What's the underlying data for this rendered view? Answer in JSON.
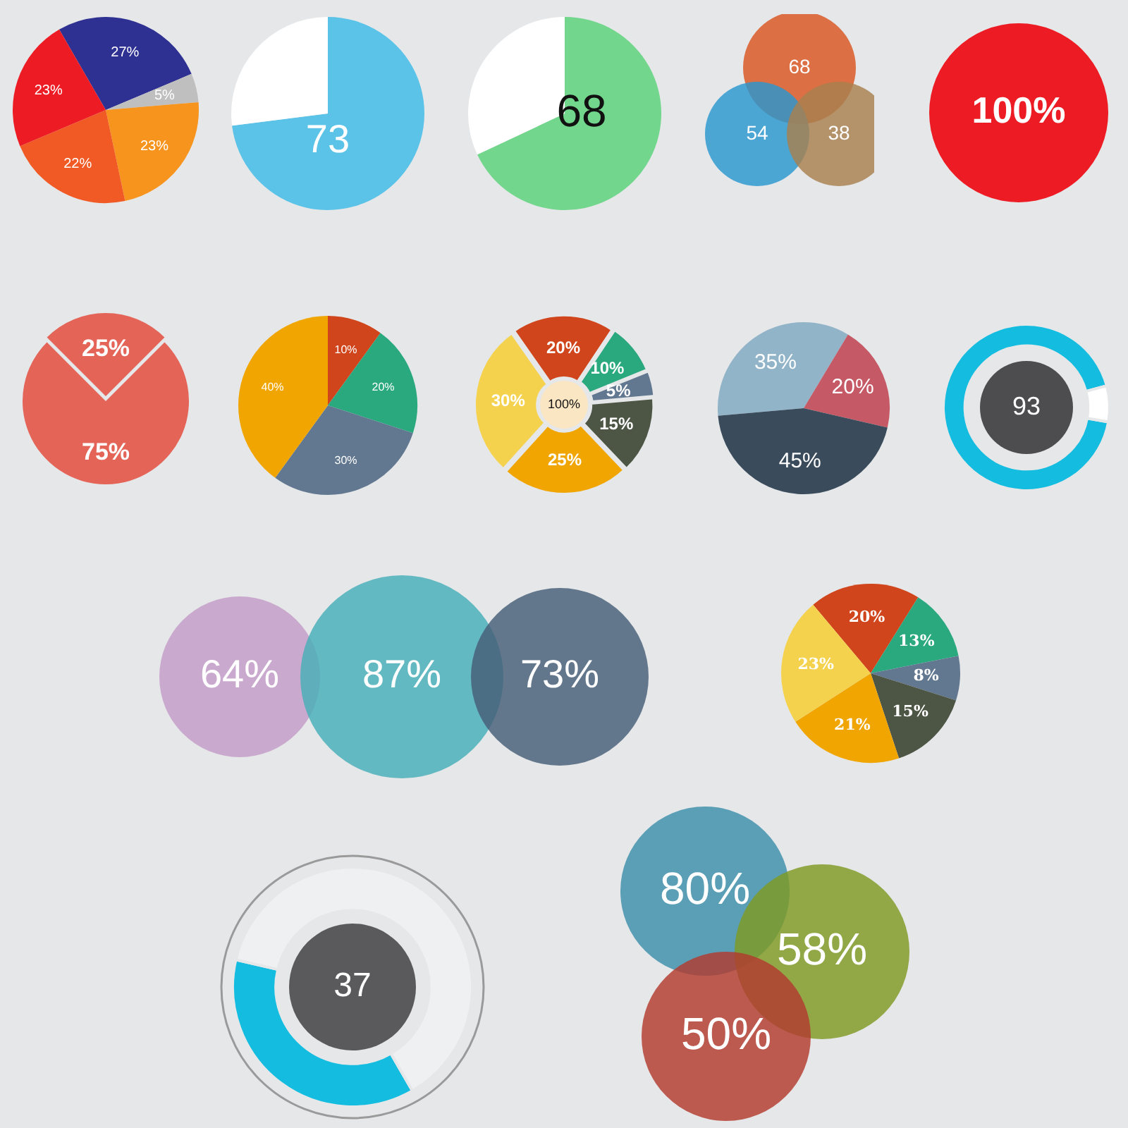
{
  "chart_data": [
    {
      "type": "pie",
      "categories": [
        null,
        null,
        null,
        null,
        null
      ],
      "values": [
        27,
        5,
        23,
        22,
        23
      ],
      "colors": [
        "#2e3192",
        "#bfbfbf",
        "#f7941d",
        "#f15a24",
        "#ed1c24"
      ],
      "value_labels": [
        "27%",
        "5%",
        "23%",
        "22%",
        "23%"
      ]
    },
    {
      "type": "pie",
      "categories": [
        null,
        null
      ],
      "values": [
        73,
        27
      ],
      "colors": [
        "#5bc3e8",
        "#ffffff"
      ],
      "annotations": [
        "73"
      ]
    },
    {
      "type": "pie",
      "categories": [
        null,
        null
      ],
      "values": [
        68,
        32
      ],
      "colors": [
        "#72d68c",
        "#ffffff"
      ],
      "annotations": [
        "68"
      ]
    },
    {
      "type": "other",
      "categories": [
        null,
        null,
        null
      ],
      "values": [
        68,
        54,
        38
      ],
      "colors": [
        "#d9541e",
        "#2a97d0",
        "#a8804f"
      ],
      "value_labels": [
        "68",
        "54",
        "38"
      ]
    },
    {
      "type": "pie",
      "categories": [
        null
      ],
      "values": [
        100
      ],
      "colors": [
        "#ed1c24"
      ],
      "annotations": [
        "100%"
      ]
    },
    {
      "type": "pie",
      "categories": [
        null,
        null
      ],
      "values": [
        25,
        75
      ],
      "colors": [
        "#e46458",
        "#e46458"
      ],
      "value_labels": [
        "25%",
        "75%"
      ]
    },
    {
      "type": "pie",
      "categories": [
        null,
        null,
        null,
        null
      ],
      "values": [
        10,
        20,
        30,
        40
      ],
      "colors": [
        "#d0451b",
        "#2aa87e",
        "#627890",
        "#f0a500"
      ],
      "value_labels": [
        "10%",
        "20%",
        "30%",
        "40%"
      ]
    },
    {
      "type": "donut",
      "categories": [
        null,
        null,
        null,
        null,
        null,
        null
      ],
      "values": [
        20,
        10,
        5,
        15,
        25,
        30
      ],
      "colors": [
        "#d0451b",
        "#2aa87e",
        "#627890",
        "#4d5645",
        "#f0a500",
        "#f5d24e"
      ],
      "value_labels": [
        "20%",
        "10%",
        "5%",
        "15%",
        "25%",
        "30%"
      ],
      "annotations": [
        "100%"
      ]
    },
    {
      "type": "pie",
      "categories": [
        null,
        null,
        null
      ],
      "values": [
        35,
        20,
        45
      ],
      "colors": [
        "#91b4c8",
        "#c55a66",
        "#3a4b5c"
      ],
      "value_labels": [
        "35%",
        "20%",
        "45%"
      ]
    },
    {
      "type": "donut",
      "categories": [
        null,
        null
      ],
      "values": [
        93,
        7
      ],
      "colors": [
        "#14bde0",
        "#ffffff"
      ],
      "annotations": [
        "93"
      ]
    },
    {
      "type": "other",
      "categories": [
        null,
        null,
        null
      ],
      "values": [
        64,
        87,
        73
      ],
      "colors": [
        "#c39bc8",
        "#45aeb8",
        "#465e78"
      ],
      "value_labels": [
        "64%",
        "87%",
        "73%"
      ]
    },
    {
      "type": "pie",
      "categories": [
        null,
        null,
        null,
        null,
        null,
        null
      ],
      "values": [
        20,
        13,
        8,
        15,
        21,
        23
      ],
      "colors": [
        "#d0451b",
        "#2aa87e",
        "#627890",
        "#4d5645",
        "#f0a500",
        "#f5d24e"
      ],
      "value_labels": [
        "20%",
        "13%",
        "8%",
        "15%",
        "21%",
        "23%"
      ]
    },
    {
      "type": "donut",
      "categories": [
        null,
        null
      ],
      "values": [
        37,
        63
      ],
      "colors": [
        "#14bde0",
        "#eff0f2"
      ],
      "annotations": [
        "37"
      ]
    },
    {
      "type": "other",
      "categories": [
        null,
        null,
        null
      ],
      "values": [
        80,
        58,
        50
      ],
      "colors": [
        "#3c8fab",
        "#7f9a23",
        "#b23a2e"
      ],
      "value_labels": [
        "80%",
        "58%",
        "50%"
      ]
    }
  ]
}
